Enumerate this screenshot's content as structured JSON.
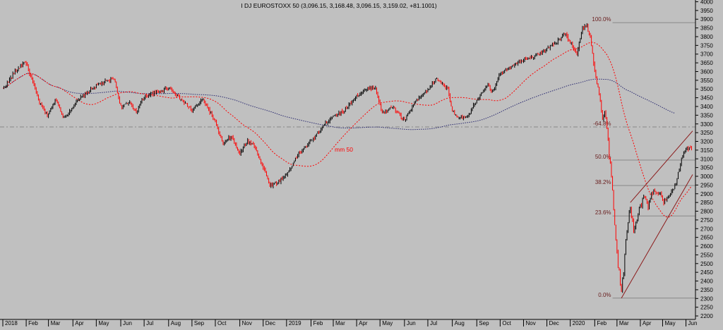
{
  "chart_data": {
    "type": "candlestick",
    "title": "I DJ EUROSTOXX 50 (3,096.15, 3,168.48, 3,096.15, 3,159.02, +81.1001)",
    "ylim": [
      2180,
      4010
    ],
    "y_ticks": [
      4000,
      3950,
      3900,
      3850,
      3800,
      3750,
      3700,
      3650,
      3600,
      3550,
      3500,
      3450,
      3400,
      3350,
      3300,
      3250,
      3200,
      3150,
      3100,
      3050,
      3000,
      2950,
      2900,
      2850,
      2800,
      2750,
      2700,
      2650,
      2600,
      2550,
      2500,
      2450,
      2400,
      2350,
      2300,
      2250,
      2200
    ],
    "x_ticks": [
      "2018",
      "Feb",
      "Mar",
      "Apr",
      "May",
      "Jun",
      "Jul",
      "Aug",
      "Sep",
      "Oct",
      "Nov",
      "Dec",
      "2019",
      "Feb",
      "Mar",
      "Apr",
      "May",
      "Jun",
      "Jul",
      "Aug",
      "Sep",
      "Oct",
      "Nov",
      "Dec",
      "2020",
      "Feb",
      "Mar",
      "Apr",
      "May",
      "Jun"
    ],
    "x_tick_index": [
      0,
      21,
      41,
      63,
      84,
      106,
      127,
      149,
      170,
      191,
      213,
      234,
      255,
      277,
      297,
      318,
      339,
      361,
      382,
      404,
      426,
      447,
      468,
      489,
      510,
      532,
      552,
      573,
      593,
      614
    ],
    "price_anchors": [
      [
        0,
        3500
      ],
      [
        10,
        3590
      ],
      [
        20,
        3660
      ],
      [
        28,
        3520
      ],
      [
        33,
        3420
      ],
      [
        40,
        3350
      ],
      [
        48,
        3440
      ],
      [
        55,
        3330
      ],
      [
        63,
        3400
      ],
      [
        70,
        3450
      ],
      [
        84,
        3520
      ],
      [
        100,
        3560
      ],
      [
        106,
        3400
      ],
      [
        114,
        3420
      ],
      [
        120,
        3370
      ],
      [
        127,
        3460
      ],
      [
        140,
        3480
      ],
      [
        149,
        3510
      ],
      [
        160,
        3440
      ],
      [
        170,
        3380
      ],
      [
        180,
        3440
      ],
      [
        191,
        3310
      ],
      [
        198,
        3180
      ],
      [
        205,
        3230
      ],
      [
        213,
        3130
      ],
      [
        220,
        3200
      ],
      [
        226,
        3180
      ],
      [
        234,
        3050
      ],
      [
        240,
        2950
      ],
      [
        246,
        2960
      ],
      [
        255,
        3010
      ],
      [
        266,
        3130
      ],
      [
        277,
        3200
      ],
      [
        287,
        3280
      ],
      [
        297,
        3350
      ],
      [
        306,
        3370
      ],
      [
        318,
        3460
      ],
      [
        328,
        3500
      ],
      [
        335,
        3510
      ],
      [
        341,
        3360
      ],
      [
        350,
        3400
      ],
      [
        361,
        3320
      ],
      [
        370,
        3420
      ],
      [
        380,
        3480
      ],
      [
        390,
        3560
      ],
      [
        400,
        3500
      ],
      [
        404,
        3380
      ],
      [
        410,
        3330
      ],
      [
        418,
        3340
      ],
      [
        426,
        3440
      ],
      [
        436,
        3520
      ],
      [
        440,
        3480
      ],
      [
        447,
        3590
      ],
      [
        456,
        3630
      ],
      [
        468,
        3670
      ],
      [
        478,
        3690
      ],
      [
        489,
        3730
      ],
      [
        500,
        3780
      ],
      [
        505,
        3820
      ],
      [
        510,
        3770
      ],
      [
        516,
        3700
      ],
      [
        521,
        3850
      ],
      [
        525,
        3860
      ],
      [
        528,
        3800
      ],
      [
        532,
        3600
      ],
      [
        536,
        3470
      ],
      [
        539,
        3330
      ],
      [
        541,
        3370
      ],
      [
        544,
        3200
      ],
      [
        548,
        2900
      ],
      [
        552,
        2550
      ],
      [
        556,
        2350
      ],
      [
        558,
        2450
      ],
      [
        561,
        2700
      ],
      [
        564,
        2820
      ],
      [
        567,
        2700
      ],
      [
        571,
        2800
      ],
      [
        576,
        2880
      ],
      [
        580,
        2830
      ],
      [
        584,
        2900
      ],
      [
        590,
        2890
      ],
      [
        595,
        2850
      ],
      [
        600,
        2900
      ],
      [
        605,
        2960
      ],
      [
        610,
        3100
      ],
      [
        614,
        3159
      ]
    ],
    "mm50_label": "mm 50",
    "fib_levels": [
      {
        "label": "100.0%",
        "value": 3880
      },
      {
        "label": "-64.8%",
        "value": 3283
      },
      {
        "label": "50.0%",
        "value": 3093
      },
      {
        "label": "38.2%",
        "value": 2947
      },
      {
        "label": "23.6%",
        "value": 2773
      },
      {
        "label": "0.0%",
        "value": 2302
      }
    ],
    "channel": {
      "lower": {
        "from": [
          556,
          2302
        ],
        "to": [
          620,
          3010
        ]
      },
      "upper": {
        "from": [
          564,
          2850
        ],
        "to": [
          620,
          3260
        ]
      }
    },
    "colors": {
      "up": "#000000",
      "down": "#ff0000",
      "ma_fast": "#ff0000",
      "ma_slow": "#2a2a70",
      "fib": "#888888",
      "background": "#c0c0c0"
    }
  }
}
